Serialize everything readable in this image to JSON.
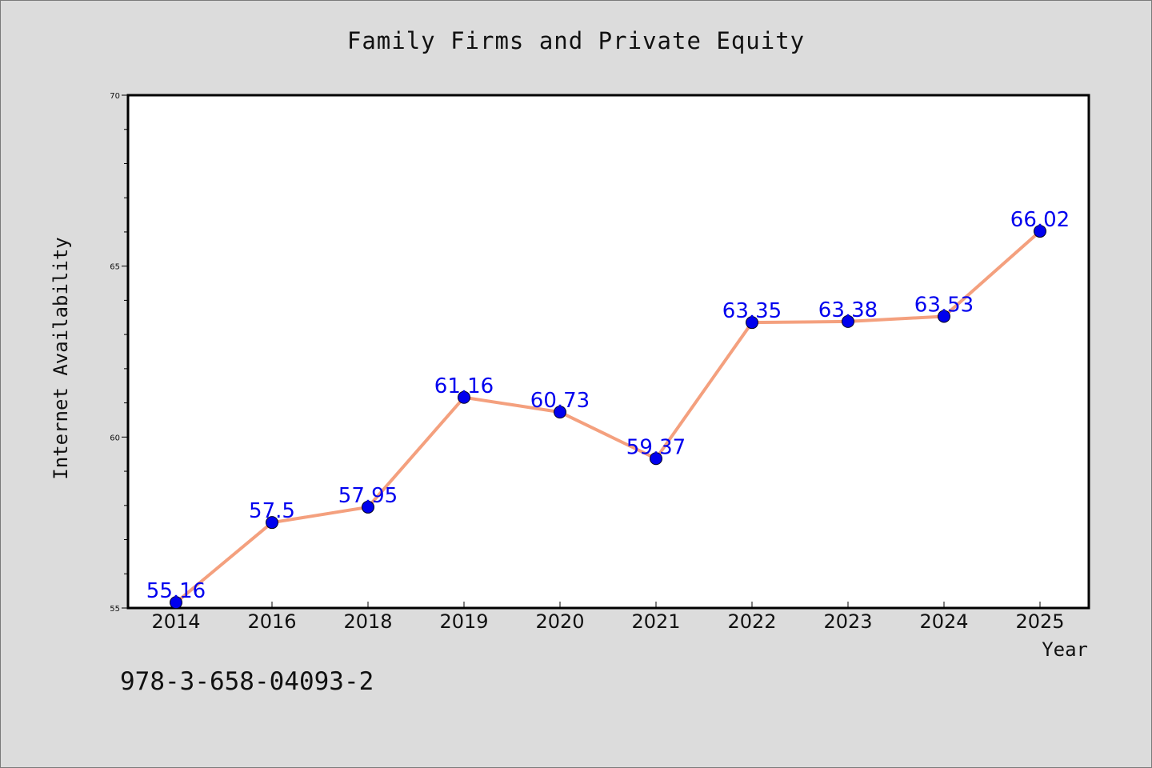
{
  "chart_data": {
    "type": "line",
    "title": "Family Firms and Private Equity",
    "xlabel": "Year",
    "ylabel": "Internet Availability",
    "categories": [
      "2014",
      "2016",
      "2018",
      "2019",
      "2020",
      "2021",
      "2022",
      "2023",
      "2024",
      "2025"
    ],
    "values": [
      55.16,
      57.5,
      57.95,
      61.16,
      60.73,
      59.37,
      63.35,
      63.38,
      63.53,
      66.02
    ],
    "data_labels": [
      "55.16",
      "57.5",
      "57.95",
      "61.16",
      "60.73",
      "59.37",
      "63.35",
      "63.38",
      "63.53",
      "66.02"
    ],
    "ylim": [
      55,
      70
    ],
    "yticks": [
      "55",
      "60",
      "65",
      "70"
    ],
    "grid": false,
    "line_color": "#f4a07e",
    "marker_color": "#0000ee",
    "label_color": "#0000ee"
  },
  "footer": {
    "isbn": "978-3-658-04093-2"
  }
}
